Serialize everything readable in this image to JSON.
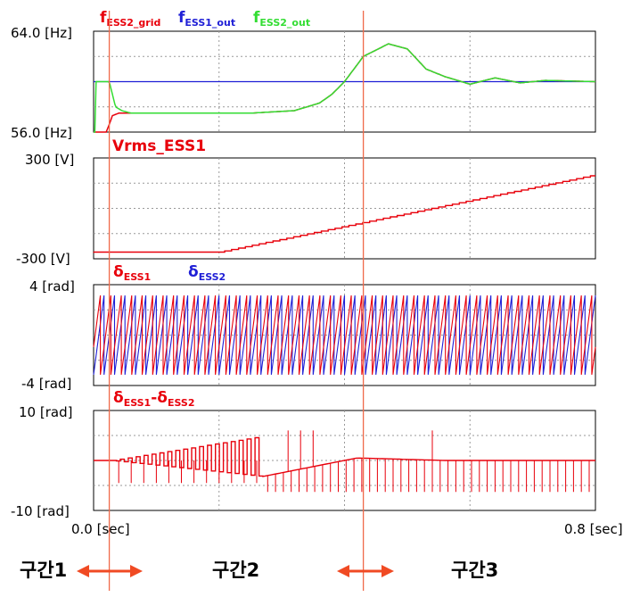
{
  "chart_data": [
    {
      "type": "line",
      "panel": "frequency",
      "ylim": [
        56.0,
        64.0
      ],
      "ytick_labels": [
        "64.0 [Hz]",
        "56.0 [Hz]"
      ],
      "x_range": [
        0.0,
        0.8
      ],
      "grid": true,
      "legend": [
        {
          "main": "f",
          "sub": "ESS2_grid",
          "color": "#e8000b"
        },
        {
          "main": "f",
          "sub": "ESS1_out",
          "color": "#1f1fd6"
        },
        {
          "main": "f",
          "sub": "ESS2_out",
          "color": "#33dd33"
        }
      ],
      "series": [
        {
          "name": "fESS2_grid",
          "color": "#e8000b",
          "x": [
            0.0,
            0.01,
            0.02,
            0.025,
            0.03,
            0.04,
            0.05,
            0.08,
            0.15,
            0.25,
            0.32,
            0.36,
            0.38,
            0.4,
            0.43,
            0.47,
            0.5,
            0.53,
            0.56,
            0.6,
            0.64,
            0.68,
            0.72,
            0.8
          ],
          "y": [
            56.0,
            56.0,
            56.0,
            56.6,
            57.3,
            57.5,
            57.5,
            57.5,
            57.5,
            57.5,
            57.7,
            58.3,
            59.0,
            60.0,
            62.0,
            63.0,
            62.6,
            61.0,
            60.4,
            59.8,
            60.3,
            59.9,
            60.1,
            60.0
          ]
        },
        {
          "name": "fESS1_out",
          "color": "#1f1fd6",
          "x": [
            0.0,
            0.8
          ],
          "y": [
            60.0,
            60.0
          ]
        },
        {
          "name": "fESS2_out",
          "color": "#33dd33",
          "x": [
            0.0,
            0.002,
            0.004,
            0.025,
            0.03,
            0.035,
            0.045,
            0.06,
            0.08,
            0.15,
            0.25,
            0.32,
            0.36,
            0.38,
            0.4,
            0.43,
            0.47,
            0.5,
            0.53,
            0.56,
            0.6,
            0.64,
            0.68,
            0.72,
            0.8
          ],
          "y": [
            56.0,
            56.0,
            60.0,
            60.0,
            59.0,
            58.0,
            57.7,
            57.5,
            57.5,
            57.5,
            57.5,
            57.7,
            58.3,
            59.0,
            60.0,
            62.0,
            63.0,
            62.6,
            61.0,
            60.4,
            59.8,
            60.3,
            59.9,
            60.1,
            60.0
          ]
        }
      ]
    },
    {
      "type": "line",
      "panel": "voltage",
      "title": "Vrms_ESS1",
      "title_color": "#e8000b",
      "ylim": [
        -300,
        300
      ],
      "ytick_labels": [
        "300  [V]",
        "-300  [V]"
      ],
      "x_range": [
        0.0,
        0.8
      ],
      "grid": true,
      "series": [
        {
          "name": "Vrms_ESS1",
          "color": "#e8000b",
          "x": [
            0.0,
            0.2,
            0.8
          ],
          "y": [
            -260,
            -260,
            200
          ],
          "step": 0.011
        }
      ]
    },
    {
      "type": "line",
      "panel": "angle",
      "ylim": [
        -4,
        4
      ],
      "ytick_labels": [
        "4 [rad]",
        "-4 [rad]"
      ],
      "x_range": [
        0.0,
        0.8
      ],
      "grid": true,
      "legend": [
        {
          "main": "δ",
          "sub": "ESS1",
          "color": "#e8000b"
        },
        {
          "main": "δ",
          "sub": "ESS2",
          "color": "#1f1fd6"
        }
      ],
      "series": [
        {
          "name": "δESS1",
          "color": "#e8000b",
          "pattern": "sawtooth",
          "amplitude": 3.14159,
          "cycles": 48,
          "phase": 0.35
        },
        {
          "name": "δESS2",
          "color": "#1f1fd6",
          "pattern": "sawtooth",
          "amplitude": 3.14159,
          "cycles": 48,
          "phase": 0.0
        }
      ]
    },
    {
      "type": "line",
      "panel": "angle-difference",
      "ylim": [
        -10,
        10
      ],
      "ytick_labels": [
        "10 [rad]",
        "-10 [rad]"
      ],
      "x_range": [
        0.0,
        0.8
      ],
      "xtick_labels": [
        "0.0  [sec]",
        "0.8  [sec]"
      ],
      "grid": true,
      "legend": [
        {
          "main": "δ",
          "sub": "ESS1",
          "color": "#e8000b"
        },
        {
          "main": "-δ",
          "sub": "ESS2",
          "color": "#e8000b"
        }
      ],
      "series": [
        {
          "name": "δESS1-δESS2",
          "color": "#e8000b",
          "baseline_x": [
            0.0,
            0.03,
            0.27,
            0.42,
            0.56,
            0.8
          ],
          "baseline_y": [
            0.0,
            0.0,
            -3.2,
            0.5,
            0.0,
            0.0
          ],
          "upper_x": [
            0.03,
            0.27
          ],
          "upper_y": [
            0.0,
            4.8
          ],
          "spike_low": -6.3
        }
      ]
    }
  ],
  "cursors_sec": [
    0.025,
    0.43
  ],
  "zones": [
    {
      "label": "구간1"
    },
    {
      "label": "구간2"
    },
    {
      "label": "구간3"
    }
  ],
  "colors": {
    "red": "#e8000b",
    "blue": "#1f1fd6",
    "green": "#33dd33",
    "arrow": "#f04a23",
    "cursor": "#f06a4a",
    "grid": "#9a9a9a"
  }
}
